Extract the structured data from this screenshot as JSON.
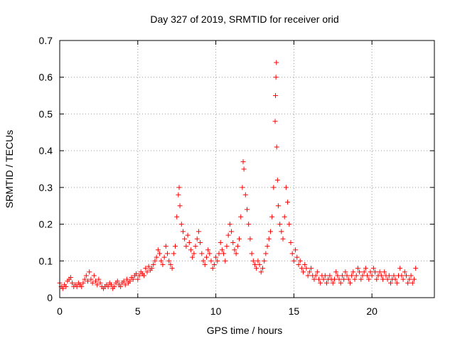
{
  "chart_data": {
    "type": "scatter",
    "title": "Day 327 of 2019, SRMTID for receiver orid",
    "xlabel": "GPS time / hours",
    "ylabel": "SRMTID / TECUs",
    "xlim": [
      0,
      24
    ],
    "ylim": [
      0,
      0.7
    ],
    "xticks": [
      0,
      5,
      10,
      15,
      20
    ],
    "yticks": [
      0,
      0.1,
      0.2,
      0.3,
      0.4,
      0.5,
      0.6,
      0.7
    ],
    "grid": true,
    "marker": "+",
    "color": "#ff0000",
    "series": [
      {
        "name": "SRMTID",
        "points": [
          [
            0.0,
            0.04
          ],
          [
            0.1,
            0.03
          ],
          [
            0.2,
            0.025
          ],
          [
            0.3,
            0.035
          ],
          [
            0.4,
            0.03
          ],
          [
            0.5,
            0.045
          ],
          [
            0.6,
            0.05
          ],
          [
            0.7,
            0.055
          ],
          [
            0.8,
            0.04
          ],
          [
            0.9,
            0.03
          ],
          [
            1.0,
            0.035
          ],
          [
            1.1,
            0.03
          ],
          [
            1.2,
            0.04
          ],
          [
            1.3,
            0.035
          ],
          [
            1.4,
            0.03
          ],
          [
            1.5,
            0.04
          ],
          [
            1.6,
            0.05
          ],
          [
            1.7,
            0.06
          ],
          [
            1.8,
            0.045
          ],
          [
            1.9,
            0.07
          ],
          [
            2.0,
            0.05
          ],
          [
            2.1,
            0.04
          ],
          [
            2.2,
            0.06
          ],
          [
            2.3,
            0.045
          ],
          [
            2.4,
            0.035
          ],
          [
            2.5,
            0.05
          ],
          [
            2.6,
            0.04
          ],
          [
            2.7,
            0.03
          ],
          [
            2.8,
            0.025
          ],
          [
            2.9,
            0.03
          ],
          [
            3.0,
            0.035
          ],
          [
            3.1,
            0.03
          ],
          [
            3.2,
            0.04
          ],
          [
            3.3,
            0.035
          ],
          [
            3.4,
            0.025
          ],
          [
            3.5,
            0.03
          ],
          [
            3.6,
            0.04
          ],
          [
            3.7,
            0.045
          ],
          [
            3.8,
            0.035
          ],
          [
            3.9,
            0.03
          ],
          [
            4.0,
            0.04
          ],
          [
            4.1,
            0.045
          ],
          [
            4.2,
            0.035
          ],
          [
            4.3,
            0.05
          ],
          [
            4.4,
            0.04
          ],
          [
            4.5,
            0.045
          ],
          [
            4.6,
            0.055
          ],
          [
            4.7,
            0.05
          ],
          [
            4.8,
            0.06
          ],
          [
            4.9,
            0.065
          ],
          [
            5.0,
            0.05
          ],
          [
            5.1,
            0.06
          ],
          [
            5.2,
            0.07
          ],
          [
            5.3,
            0.065
          ],
          [
            5.4,
            0.06
          ],
          [
            5.5,
            0.08
          ],
          [
            5.6,
            0.07
          ],
          [
            5.7,
            0.085
          ],
          [
            5.8,
            0.075
          ],
          [
            5.9,
            0.08
          ],
          [
            6.0,
            0.09
          ],
          [
            6.1,
            0.1
          ],
          [
            6.2,
            0.11
          ],
          [
            6.3,
            0.13
          ],
          [
            6.4,
            0.12
          ],
          [
            6.5,
            0.1
          ],
          [
            6.6,
            0.09
          ],
          [
            6.7,
            0.11
          ],
          [
            6.8,
            0.14
          ],
          [
            6.9,
            0.12
          ],
          [
            7.0,
            0.1
          ],
          [
            7.1,
            0.09
          ],
          [
            7.2,
            0.08
          ],
          [
            7.3,
            0.12
          ],
          [
            7.4,
            0.14
          ],
          [
            7.5,
            0.22
          ],
          [
            7.6,
            0.28
          ],
          [
            7.65,
            0.3
          ],
          [
            7.7,
            0.25
          ],
          [
            7.8,
            0.2
          ],
          [
            7.9,
            0.18
          ],
          [
            8.0,
            0.16
          ],
          [
            8.1,
            0.14
          ],
          [
            8.2,
            0.17
          ],
          [
            8.3,
            0.15
          ],
          [
            8.4,
            0.13
          ],
          [
            8.5,
            0.11
          ],
          [
            8.6,
            0.12
          ],
          [
            8.7,
            0.14
          ],
          [
            8.8,
            0.16
          ],
          [
            8.9,
            0.18
          ],
          [
            9.0,
            0.15
          ],
          [
            9.1,
            0.12
          ],
          [
            9.2,
            0.1
          ],
          [
            9.3,
            0.09
          ],
          [
            9.4,
            0.11
          ],
          [
            9.5,
            0.13
          ],
          [
            9.6,
            0.12
          ],
          [
            9.7,
            0.1
          ],
          [
            9.8,
            0.08
          ],
          [
            9.9,
            0.09
          ],
          [
            10.0,
            0.11
          ],
          [
            10.1,
            0.1
          ],
          [
            10.2,
            0.12
          ],
          [
            10.3,
            0.15
          ],
          [
            10.4,
            0.13
          ],
          [
            10.5,
            0.12
          ],
          [
            10.6,
            0.1
          ],
          [
            10.7,
            0.14
          ],
          [
            10.8,
            0.17
          ],
          [
            10.9,
            0.2
          ],
          [
            11.0,
            0.18
          ],
          [
            11.1,
            0.15
          ],
          [
            11.2,
            0.13
          ],
          [
            11.3,
            0.12
          ],
          [
            11.4,
            0.14
          ],
          [
            11.5,
            0.16
          ],
          [
            11.6,
            0.22
          ],
          [
            11.7,
            0.3
          ],
          [
            11.75,
            0.37
          ],
          [
            11.8,
            0.35
          ],
          [
            11.9,
            0.28
          ],
          [
            12.0,
            0.24
          ],
          [
            12.1,
            0.2
          ],
          [
            12.2,
            0.16
          ],
          [
            12.3,
            0.12
          ],
          [
            12.4,
            0.1
          ],
          [
            12.5,
            0.09
          ],
          [
            12.6,
            0.08
          ],
          [
            12.7,
            0.1
          ],
          [
            12.8,
            0.09
          ],
          [
            12.9,
            0.07
          ],
          [
            13.0,
            0.08
          ],
          [
            13.1,
            0.1
          ],
          [
            13.2,
            0.12
          ],
          [
            13.3,
            0.14
          ],
          [
            13.4,
            0.16
          ],
          [
            13.5,
            0.18
          ],
          [
            13.6,
            0.22
          ],
          [
            13.7,
            0.3
          ],
          [
            13.8,
            0.48
          ],
          [
            13.82,
            0.55
          ],
          [
            13.85,
            0.6
          ],
          [
            13.88,
            0.64
          ],
          [
            13.9,
            0.41
          ],
          [
            13.95,
            0.32
          ],
          [
            14.0,
            0.25
          ],
          [
            14.1,
            0.2
          ],
          [
            14.2,
            0.18
          ],
          [
            14.3,
            0.16
          ],
          [
            14.4,
            0.22
          ],
          [
            14.5,
            0.3
          ],
          [
            14.6,
            0.26
          ],
          [
            14.7,
            0.2
          ],
          [
            14.8,
            0.15
          ],
          [
            14.9,
            0.12
          ],
          [
            15.0,
            0.1
          ],
          [
            15.1,
            0.13
          ],
          [
            15.2,
            0.11
          ],
          [
            15.3,
            0.09
          ],
          [
            15.4,
            0.1
          ],
          [
            15.5,
            0.08
          ],
          [
            15.6,
            0.07
          ],
          [
            15.7,
            0.09
          ],
          [
            15.8,
            0.08
          ],
          [
            15.9,
            0.06
          ],
          [
            16.0,
            0.07
          ],
          [
            16.1,
            0.08
          ],
          [
            16.2,
            0.06
          ],
          [
            16.3,
            0.05
          ],
          [
            16.4,
            0.06
          ],
          [
            16.5,
            0.07
          ],
          [
            16.6,
            0.05
          ],
          [
            16.7,
            0.04
          ],
          [
            16.8,
            0.06
          ],
          [
            16.9,
            0.05
          ],
          [
            17.0,
            0.06
          ],
          [
            17.1,
            0.04
          ],
          [
            17.2,
            0.05
          ],
          [
            17.3,
            0.06
          ],
          [
            17.4,
            0.05
          ],
          [
            17.5,
            0.04
          ],
          [
            17.6,
            0.05
          ],
          [
            17.7,
            0.07
          ],
          [
            17.8,
            0.06
          ],
          [
            17.9,
            0.05
          ],
          [
            18.0,
            0.04
          ],
          [
            18.1,
            0.06
          ],
          [
            18.2,
            0.05
          ],
          [
            18.3,
            0.07
          ],
          [
            18.4,
            0.06
          ],
          [
            18.5,
            0.05
          ],
          [
            18.6,
            0.04
          ],
          [
            18.7,
            0.06
          ],
          [
            18.8,
            0.07
          ],
          [
            18.9,
            0.05
          ],
          [
            19.0,
            0.06
          ],
          [
            19.1,
            0.08
          ],
          [
            19.2,
            0.07
          ],
          [
            19.3,
            0.05
          ],
          [
            19.4,
            0.06
          ],
          [
            19.5,
            0.07
          ],
          [
            19.6,
            0.08
          ],
          [
            19.7,
            0.06
          ],
          [
            19.8,
            0.05
          ],
          [
            19.9,
            0.07
          ],
          [
            20.0,
            0.06
          ],
          [
            20.1,
            0.08
          ],
          [
            20.2,
            0.07
          ],
          [
            20.3,
            0.05
          ],
          [
            20.4,
            0.06
          ],
          [
            20.5,
            0.07
          ],
          [
            20.6,
            0.06
          ],
          [
            20.7,
            0.05
          ],
          [
            20.8,
            0.07
          ],
          [
            20.9,
            0.06
          ],
          [
            21.0,
            0.05
          ],
          [
            21.1,
            0.06
          ],
          [
            21.2,
            0.04
          ],
          [
            21.3,
            0.05
          ],
          [
            21.4,
            0.06
          ],
          [
            21.5,
            0.05
          ],
          [
            21.6,
            0.04
          ],
          [
            21.7,
            0.06
          ],
          [
            21.8,
            0.08
          ],
          [
            21.9,
            0.06
          ],
          [
            22.0,
            0.05
          ],
          [
            22.1,
            0.07
          ],
          [
            22.2,
            0.06
          ],
          [
            22.3,
            0.04
          ],
          [
            22.4,
            0.05
          ],
          [
            22.5,
            0.06
          ],
          [
            22.6,
            0.04
          ],
          [
            22.7,
            0.05
          ],
          [
            22.8,
            0.08
          ]
        ]
      }
    ]
  }
}
